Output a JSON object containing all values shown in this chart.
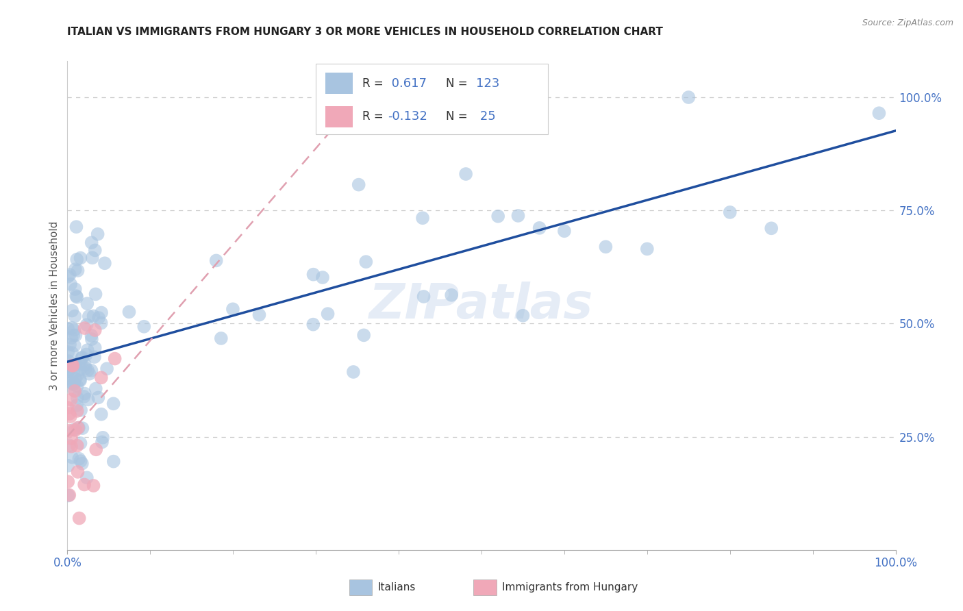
{
  "title": "ITALIAN VS IMMIGRANTS FROM HUNGARY 3 OR MORE VEHICLES IN HOUSEHOLD CORRELATION CHART",
  "source": "Source: ZipAtlas.com",
  "ylabel": "3 or more Vehicles in Household",
  "r_italian": 0.617,
  "n_italian": 123,
  "r_hungary": -0.132,
  "n_hungary": 25,
  "italian_color": "#a8c4e0",
  "hungary_color": "#f0a8b8",
  "trend_italian_color": "#1f4e9e",
  "trend_hungary_color": "#e0a0b0",
  "background_color": "#ffffff",
  "grid_color": "#cccccc",
  "watermark": "ZIPatlas",
  "title_color": "#222222",
  "axis_color": "#4472c4",
  "label_color": "#555555"
}
